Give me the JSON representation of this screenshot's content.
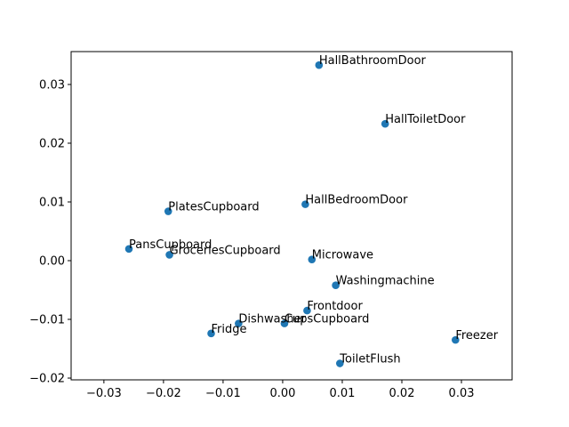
{
  "chart_data": {
    "type": "scatter",
    "title": "",
    "xlabel": "",
    "ylabel": "",
    "xlim": [
      -0.0355,
      0.0385
    ],
    "ylim": [
      -0.0203,
      0.0356
    ],
    "xticks": [
      -0.03,
      -0.02,
      -0.01,
      0.0,
      0.01,
      0.02,
      0.03
    ],
    "xtick_labels": [
      "−0.03",
      "−0.02",
      "−0.01",
      "0.00",
      "0.01",
      "0.02",
      "0.03"
    ],
    "yticks": [
      -0.02,
      -0.01,
      0.0,
      0.01,
      0.02,
      0.03
    ],
    "ytick_labels": [
      "−0.02",
      "−0.01",
      "0.00",
      "0.01",
      "0.02",
      "0.03"
    ],
    "grid": false,
    "marker_color": "#1f77b4",
    "points": [
      {
        "label": "HallBathroomDoor",
        "x": 0.0061,
        "y": 0.0333
      },
      {
        "label": "HallToiletDoor",
        "x": 0.0172,
        "y": 0.0233
      },
      {
        "label": "HallBedroomDoor",
        "x": 0.0038,
        "y": 0.0096
      },
      {
        "label": "PlatesCupboard",
        "x": -0.0192,
        "y": 0.0084
      },
      {
        "label": "PansCupboard",
        "x": -0.0258,
        "y": 0.002
      },
      {
        "label": "GroceriesCupboard",
        "x": -0.019,
        "y": 0.001
      },
      {
        "label": "Microwave",
        "x": 0.0049,
        "y": 0.0002
      },
      {
        "label": "Washingmachine",
        "x": 0.0089,
        "y": -0.0042
      },
      {
        "label": "Frontdoor",
        "x": 0.0041,
        "y": -0.0085
      },
      {
        "label": "Dishwasher",
        "x": -0.0074,
        "y": -0.0107
      },
      {
        "label": "CupsCupboard",
        "x": 0.0003,
        "y": -0.0107
      },
      {
        "label": "Fridge",
        "x": -0.012,
        "y": -0.0124
      },
      {
        "label": "Freezer",
        "x": 0.029,
        "y": -0.0135
      },
      {
        "label": "ToiletFlush",
        "x": 0.0096,
        "y": -0.0175
      }
    ]
  }
}
